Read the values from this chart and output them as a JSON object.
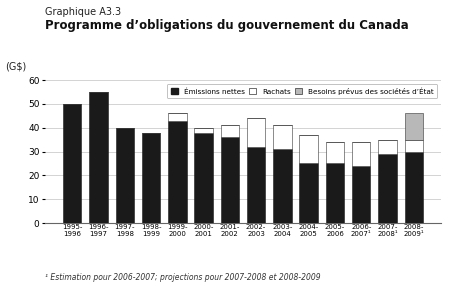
{
  "title_top": "Graphique A3.3",
  "title_main": "Programme d’obligations du gouvernement du Canada",
  "ylabel": "(G$)",
  "footnote": "¹ Estimation pour 2006-2007; projections pour 2007-2008 et 2008-2009",
  "categories": [
    "1995-\n1996",
    "1996-\n1997",
    "1997-\n1998",
    "1998-\n1999",
    "1999-\n2000",
    "2000-\n2001",
    "2001-\n2002",
    "2002-\n2003",
    "2003-\n2004",
    "2004-\n2005",
    "2005-\n2006",
    "2006-\n2007¹",
    "2007-\n2008¹",
    "2008-\n2009¹"
  ],
  "emissions_nettes": [
    50,
    55,
    40,
    38,
    43,
    38,
    36,
    32,
    31,
    25,
    25,
    24,
    29,
    30
  ],
  "rachats": [
    0,
    0,
    0,
    0,
    3,
    2,
    5,
    12,
    10,
    12,
    9,
    10,
    6,
    5
  ],
  "besoins": [
    0,
    0,
    0,
    0,
    0,
    0,
    0,
    0,
    0,
    0,
    0,
    0,
    0,
    11
  ],
  "color_emissions": "#1a1a1a",
  "color_rachats": "#ffffff",
  "color_besoins": "#b8b8b8",
  "color_edge": "#333333",
  "ylim": [
    0,
    60
  ],
  "yticks": [
    0,
    10,
    20,
    30,
    40,
    50,
    60
  ],
  "legend_labels": [
    "Émissions nettes",
    "Rachats",
    "Besoins prévus des sociétés d’État"
  ],
  "background_color": "#ffffff"
}
